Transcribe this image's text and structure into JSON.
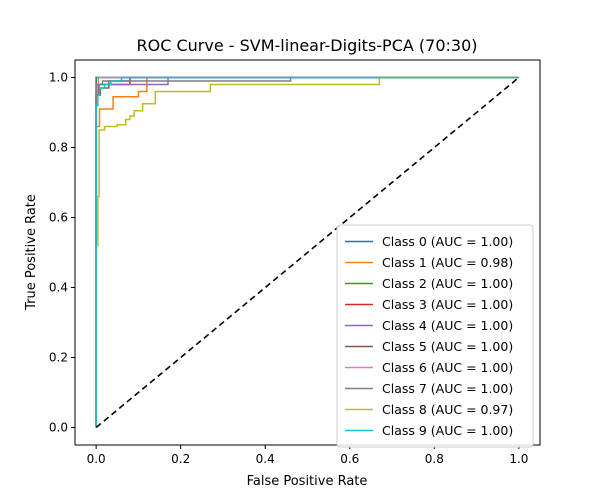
{
  "chart_data": {
    "type": "line",
    "title": "ROC Curve - SVM-linear-Digits-PCA (70:30)",
    "xlabel": "False Positive Rate",
    "ylabel": "True Positive Rate",
    "xlim": [
      -0.05,
      1.05
    ],
    "ylim": [
      -0.05,
      1.05
    ],
    "xticks": [
      0.0,
      0.2,
      0.4,
      0.6,
      0.8,
      1.0
    ],
    "yticks": [
      0.0,
      0.2,
      0.4,
      0.6,
      0.8,
      1.0
    ],
    "xtick_labels": [
      "0.0",
      "0.2",
      "0.4",
      "0.6",
      "0.8",
      "1.0"
    ],
    "ytick_labels": [
      "0.0",
      "0.2",
      "0.4",
      "0.6",
      "0.8",
      "1.0"
    ],
    "grid": false,
    "legend_position": "lower-right",
    "diagonal": {
      "x": [
        0,
        1
      ],
      "y": [
        0,
        1
      ],
      "color": "#000000",
      "style": "dashed"
    },
    "series": [
      {
        "name": "Class 0 (AUC = 1.00)",
        "color": "#1f77b4",
        "x": [
          0,
          0,
          0,
          1
        ],
        "y": [
          0,
          0.98,
          1.0,
          1.0
        ]
      },
      {
        "name": "Class 1 (AUC = 0.98)",
        "color": "#ff7f0e",
        "x": [
          0,
          0,
          0.008,
          0.008,
          0.04,
          0.04,
          0.1,
          0.1,
          0.12,
          0.12,
          1.0
        ],
        "y": [
          0,
          0.86,
          0.86,
          0.91,
          0.91,
          0.945,
          0.945,
          0.96,
          0.96,
          1.0,
          1.0
        ]
      },
      {
        "name": "Class 2 (AUC = 1.00)",
        "color": "#2ca02c",
        "x": [
          0,
          0,
          0,
          1
        ],
        "y": [
          0,
          0.99,
          1.0,
          1.0
        ]
      },
      {
        "name": "Class 3 (AUC = 1.00)",
        "color": "#d62728",
        "x": [
          0,
          0,
          0.005,
          0.005,
          0.08,
          0.08,
          1.0
        ],
        "y": [
          0,
          0.95,
          0.95,
          0.98,
          0.98,
          1.0,
          1.0
        ]
      },
      {
        "name": "Class 4 (AUC = 1.00)",
        "color": "#9467bd",
        "x": [
          0,
          0,
          0.007,
          0.007,
          0.17,
          0.17,
          1.0
        ],
        "y": [
          0,
          0.96,
          0.96,
          0.98,
          0.98,
          1.0,
          1.0
        ]
      },
      {
        "name": "Class 5 (AUC = 1.00)",
        "color": "#8c564b",
        "x": [
          0,
          0,
          0.01,
          0.01,
          0.03,
          0.03,
          0.08,
          0.08,
          1.0
        ],
        "y": [
          0,
          0.95,
          0.95,
          0.97,
          0.97,
          0.99,
          0.99,
          1.0,
          1.0
        ]
      },
      {
        "name": "Class 6 (AUC = 1.00)",
        "color": "#e377c2",
        "x": [
          0,
          0,
          0.005,
          0.005,
          1.0
        ],
        "y": [
          0,
          0.98,
          0.98,
          1.0,
          1.0
        ]
      },
      {
        "name": "Class 7 (AUC = 1.00)",
        "color": "#7f7f7f",
        "x": [
          0,
          0,
          0.015,
          0.015,
          0.46,
          0.46,
          1.0
        ],
        "y": [
          0,
          0.98,
          0.98,
          0.99,
          0.99,
          1.0,
          1.0
        ]
      },
      {
        "name": "Class 8 (AUC = 0.97)",
        "color": "#bcbd22",
        "x": [
          0,
          0,
          0.004,
          0.004,
          0.007,
          0.007,
          0.02,
          0.02,
          0.05,
          0.05,
          0.07,
          0.07,
          0.08,
          0.08,
          0.09,
          0.09,
          0.11,
          0.11,
          0.14,
          0.14,
          0.27,
          0.27,
          0.67,
          0.67,
          1.0
        ],
        "y": [
          0,
          0.52,
          0.52,
          0.66,
          0.66,
          0.85,
          0.85,
          0.86,
          0.86,
          0.865,
          0.865,
          0.88,
          0.88,
          0.89,
          0.89,
          0.905,
          0.905,
          0.925,
          0.925,
          0.96,
          0.96,
          0.98,
          0.98,
          1.0,
          1.0
        ]
      },
      {
        "name": "Class 9 (AUC = 1.00)",
        "color": "#17becf",
        "x": [
          0,
          0,
          0.004,
          0.004,
          0.008,
          0.008,
          0.02,
          0.02,
          0.035,
          0.035,
          0.06,
          0.06,
          1.0
        ],
        "y": [
          0,
          0.92,
          0.92,
          0.95,
          0.95,
          0.97,
          0.97,
          0.98,
          0.98,
          0.99,
          0.99,
          1.0,
          1.0
        ]
      }
    ]
  }
}
